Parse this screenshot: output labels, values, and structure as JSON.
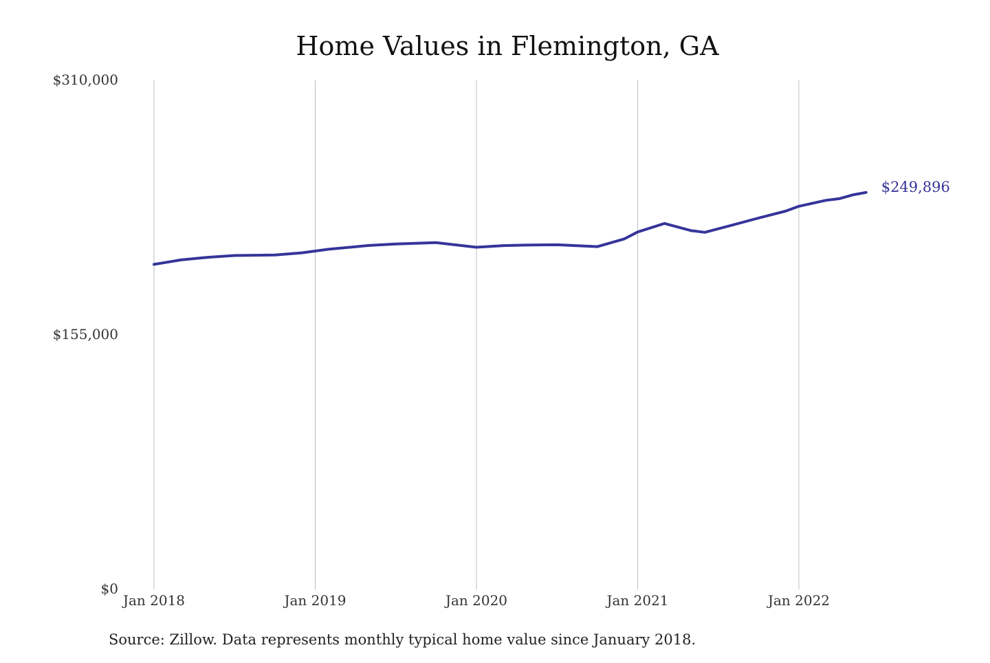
{
  "chart_data": {
    "type": "line",
    "title": "Home Values in Flemington, GA",
    "xlabel": "",
    "ylabel": "",
    "ylim": [
      0,
      310000
    ],
    "y_ticks": [
      {
        "value": 310000,
        "label": "$310,000"
      },
      {
        "value": 155000,
        "label": "$155,000"
      },
      {
        "value": 0,
        "label": "$0"
      }
    ],
    "x_ticks": [
      {
        "value": "2018-01",
        "label": "Jan 2018"
      },
      {
        "value": "2019-01",
        "label": "Jan 2019"
      },
      {
        "value": "2020-01",
        "label": "Jan 2020"
      },
      {
        "value": "2021-01",
        "label": "Jan 2021"
      },
      {
        "value": "2022-01",
        "label": "Jan 2022"
      }
    ],
    "grid": {
      "vertical": true,
      "horizontal": false
    },
    "series": [
      {
        "color": "#36349a",
        "x": [
          "2018-01",
          "2018-03",
          "2018-05",
          "2018-07",
          "2018-10",
          "2018-12",
          "2019-02",
          "2019-05",
          "2019-07",
          "2019-10",
          "2020-01",
          "2020-03",
          "2020-05",
          "2020-07",
          "2020-10",
          "2020-12",
          "2021-01",
          "2021-03",
          "2021-05",
          "2021-06",
          "2021-08",
          "2021-10",
          "2021-12",
          "2022-01",
          "2022-03",
          "2022-04",
          "2022-05",
          "2022-06"
        ],
        "values": [
          198000,
          200700,
          202300,
          203400,
          203700,
          205000,
          207200,
          209500,
          210400,
          211200,
          208400,
          209400,
          209800,
          209900,
          208800,
          213500,
          217700,
          222900,
          218500,
          217500,
          221800,
          226200,
          230400,
          233400,
          237000,
          238000,
          240300,
          241800
        ]
      }
    ],
    "end_label": "$249,896"
  },
  "source_note": "Source: Zillow. Data represents monthly typical home value since January 2018."
}
